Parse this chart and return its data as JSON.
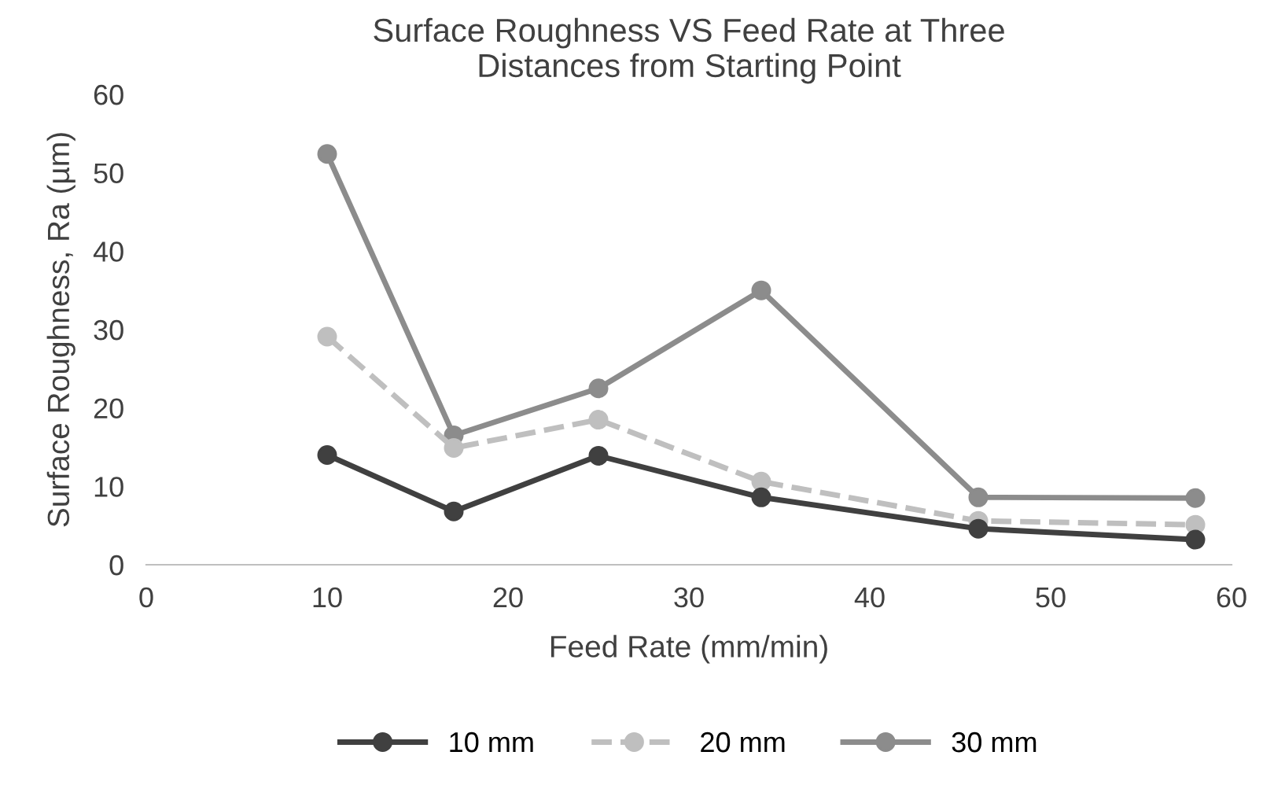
{
  "chart_data": {
    "type": "line",
    "title": "Surface Roughness VS Feed Rate at Three\nDistances from Starting Point",
    "xlabel": "Feed Rate (mm/min)",
    "ylabel": "Surface Roughness, Ra (µm)",
    "x": [
      10,
      17,
      25,
      34,
      46,
      58
    ],
    "series": [
      {
        "name": "10 mm",
        "color": "#404040",
        "line_style": "solid",
        "values": [
          14,
          6.8,
          13.9,
          8.6,
          4.6,
          3.2
        ]
      },
      {
        "name": "20 mm",
        "color": "#bfbfbf",
        "line_style": "dashed",
        "values": [
          29.1,
          14.9,
          18.5,
          10.6,
          5.6,
          5.1
        ]
      },
      {
        "name": "30 mm",
        "color": "#8c8c8c",
        "line_style": "solid",
        "values": [
          52.4,
          16.5,
          22.5,
          35,
          8.6,
          8.5
        ]
      }
    ],
    "xlim": [
      0,
      60
    ],
    "xticks": [
      0,
      10,
      20,
      30,
      40,
      50,
      60
    ],
    "ylim": [
      0,
      60
    ],
    "yticks": [
      0,
      10,
      20,
      30,
      40,
      50,
      60
    ],
    "marker": "circle",
    "grid": false,
    "legend": "bottom"
  }
}
